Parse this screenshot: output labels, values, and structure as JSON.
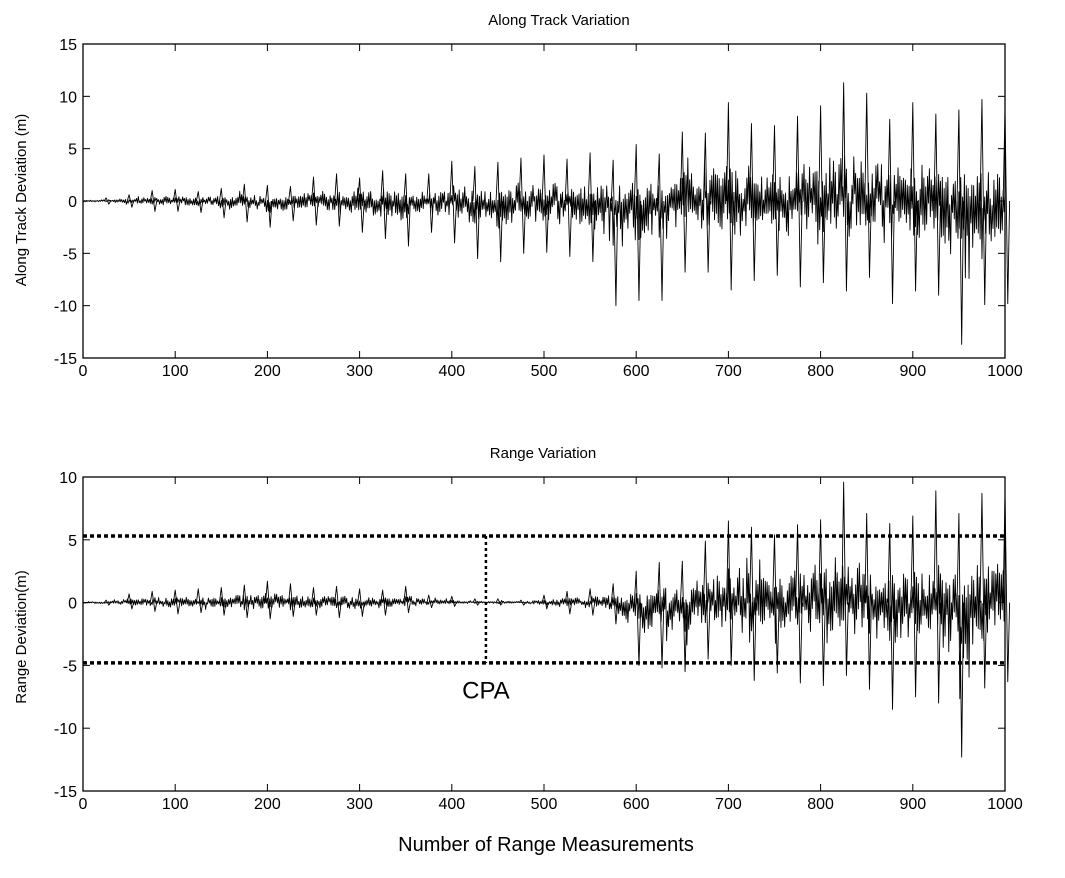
{
  "figure": {
    "xlabel": "Number of Range Measurements"
  },
  "chart_data": [
    {
      "type": "line",
      "title": "Along Track Variation",
      "ylabel": "Along Track Deviation (m)",
      "xlabel": "",
      "xlim": [
        0,
        1000
      ],
      "ylim": [
        -15,
        15
      ],
      "x_ticks": [
        0,
        100,
        200,
        300,
        400,
        500,
        600,
        700,
        800,
        900,
        1000
      ],
      "y_ticks": [
        15,
        10,
        5,
        0,
        -5,
        -10,
        -15
      ],
      "grid": false,
      "series": [
        {
          "x": [
            0,
            25,
            50,
            75,
            100,
            125,
            150,
            175,
            200,
            225,
            250,
            275,
            300,
            325,
            350,
            375,
            400,
            425,
            450,
            475,
            500,
            525,
            550,
            575,
            600,
            625,
            650,
            675,
            700,
            725,
            750,
            775,
            800,
            825,
            850,
            875,
            900,
            925,
            950,
            975,
            1000
          ],
          "ymax": [
            0.2,
            0.3,
            0.6,
            1.0,
            1.1,
            0.9,
            1.2,
            1.6,
            1.5,
            1.4,
            2.3,
            2.6,
            2.2,
            2.9,
            2.6,
            2.6,
            3.8,
            3.3,
            3.7,
            4.1,
            4.4,
            4.0,
            4.6,
            3.9,
            5.4,
            4.5,
            6.6,
            6.5,
            9.4,
            7.4,
            7.2,
            8.1,
            9.1,
            11.3,
            10.3,
            7.8,
            9.4,
            8.3,
            8.7,
            9.7,
            8.7
          ],
          "ymin": [
            -0.2,
            -0.3,
            -0.6,
            -1.0,
            -1.0,
            -1.1,
            -1.6,
            -2.0,
            -2.5,
            -1.9,
            -2.3,
            -2.4,
            -3.0,
            -3.6,
            -4.3,
            -3.0,
            -4.0,
            -5.5,
            -5.8,
            -5.0,
            -4.9,
            -5.3,
            -5.8,
            -10.0,
            -9.5,
            -9.5,
            -6.8,
            -6.8,
            -8.5,
            -7.6,
            -7.1,
            -8.2,
            -7.8,
            -8.6,
            -7.3,
            -9.8,
            -8.6,
            -9.0,
            -13.7,
            -9.9,
            -9.8
          ]
        }
      ],
      "annotations": []
    },
    {
      "type": "line",
      "title": "Range Variation",
      "ylabel": "Range Deviation(m)",
      "xlabel": "Number of Range Measurements",
      "xlim": [
        0,
        1000
      ],
      "ylim": [
        -15,
        10
      ],
      "x_ticks": [
        0,
        100,
        200,
        300,
        400,
        500,
        600,
        700,
        800,
        900,
        1000
      ],
      "y_ticks": [
        10,
        5,
        0,
        -5,
        -10,
        -15
      ],
      "grid": false,
      "series": [
        {
          "x": [
            0,
            25,
            50,
            75,
            100,
            125,
            150,
            175,
            200,
            225,
            250,
            275,
            300,
            325,
            350,
            375,
            400,
            425,
            450,
            475,
            500,
            525,
            550,
            575,
            600,
            625,
            650,
            675,
            700,
            725,
            750,
            775,
            800,
            825,
            850,
            875,
            900,
            925,
            950,
            975,
            1000
          ],
          "ymax": [
            0.2,
            0.2,
            0.7,
            0.9,
            1.0,
            1.1,
            1.2,
            1.4,
            1.7,
            1.5,
            1.2,
            1.3,
            1.1,
            1.0,
            1.3,
            0.6,
            0.5,
            0.3,
            0.3,
            0.2,
            0.6,
            0.9,
            1.1,
            1.5,
            2.5,
            3.2,
            3.3,
            4.9,
            6.5,
            6.0,
            5.4,
            6.2,
            6.6,
            9.6,
            7.1,
            6.3,
            6.9,
            8.9,
            7.1,
            8.7,
            8.7
          ],
          "ymin": [
            -0.2,
            -0.2,
            -0.5,
            -0.7,
            -0.9,
            -0.8,
            -1.0,
            -1.2,
            -1.3,
            -1.1,
            -1.0,
            -1.2,
            -1.1,
            -1.0,
            -0.8,
            -0.4,
            -0.3,
            -0.2,
            -0.2,
            -0.2,
            -0.5,
            -0.9,
            -1.0,
            -1.7,
            -5.0,
            -5.2,
            -5.5,
            -4.5,
            -5.0,
            -6.2,
            -5.6,
            -6.4,
            -6.6,
            -5.8,
            -6.9,
            -8.5,
            -7.5,
            -8.0,
            -12.3,
            -6.8,
            -6.3
          ]
        }
      ],
      "reference_lines": [
        {
          "orientation": "horizontal",
          "y": 5.3,
          "style": "dotted"
        },
        {
          "orientation": "horizontal",
          "y": -4.8,
          "style": "dotted"
        },
        {
          "orientation": "vertical",
          "x": 437,
          "y_from": -4.8,
          "y_to": 5.3,
          "style": "dotted"
        }
      ],
      "annotations": [
        {
          "text": "CPA",
          "x": 437,
          "y": -7
        }
      ]
    }
  ]
}
